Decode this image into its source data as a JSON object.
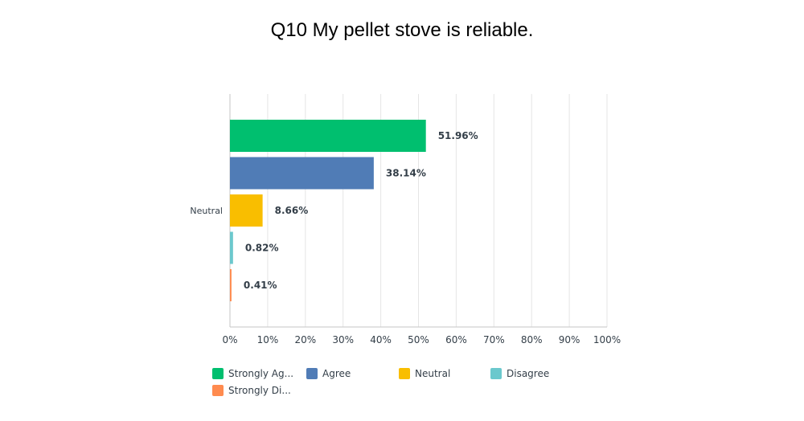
{
  "chart_data": {
    "type": "bar",
    "orientation": "horizontal",
    "title": "Q10 My pellet stove is reliable.",
    "categories": [
      "Strongly Agree",
      "Agree",
      "Neutral",
      "Disagree",
      "Strongly Disagree"
    ],
    "y_tick_labels": [
      "",
      "",
      "Neutral",
      "",
      ""
    ],
    "values": [
      51.96,
      38.14,
      8.66,
      0.82,
      0.41
    ],
    "value_labels": [
      "51.96%",
      "38.14%",
      "8.66%",
      "0.82%",
      "0.41%"
    ],
    "colors": [
      "#00bf6f",
      "#507cb6",
      "#f9be00",
      "#6bc8cd",
      "#ff8b4f"
    ],
    "xlim": [
      0,
      100
    ],
    "x_ticks": [
      "0%",
      "10%",
      "20%",
      "30%",
      "40%",
      "50%",
      "60%",
      "70%",
      "80%",
      "90%",
      "100%"
    ],
    "grid": true,
    "legend": {
      "placement": "bottom",
      "entries": [
        "Strongly Ag...",
        "Agree",
        "Neutral",
        "Disagree",
        "Strongly Di..."
      ]
    }
  }
}
